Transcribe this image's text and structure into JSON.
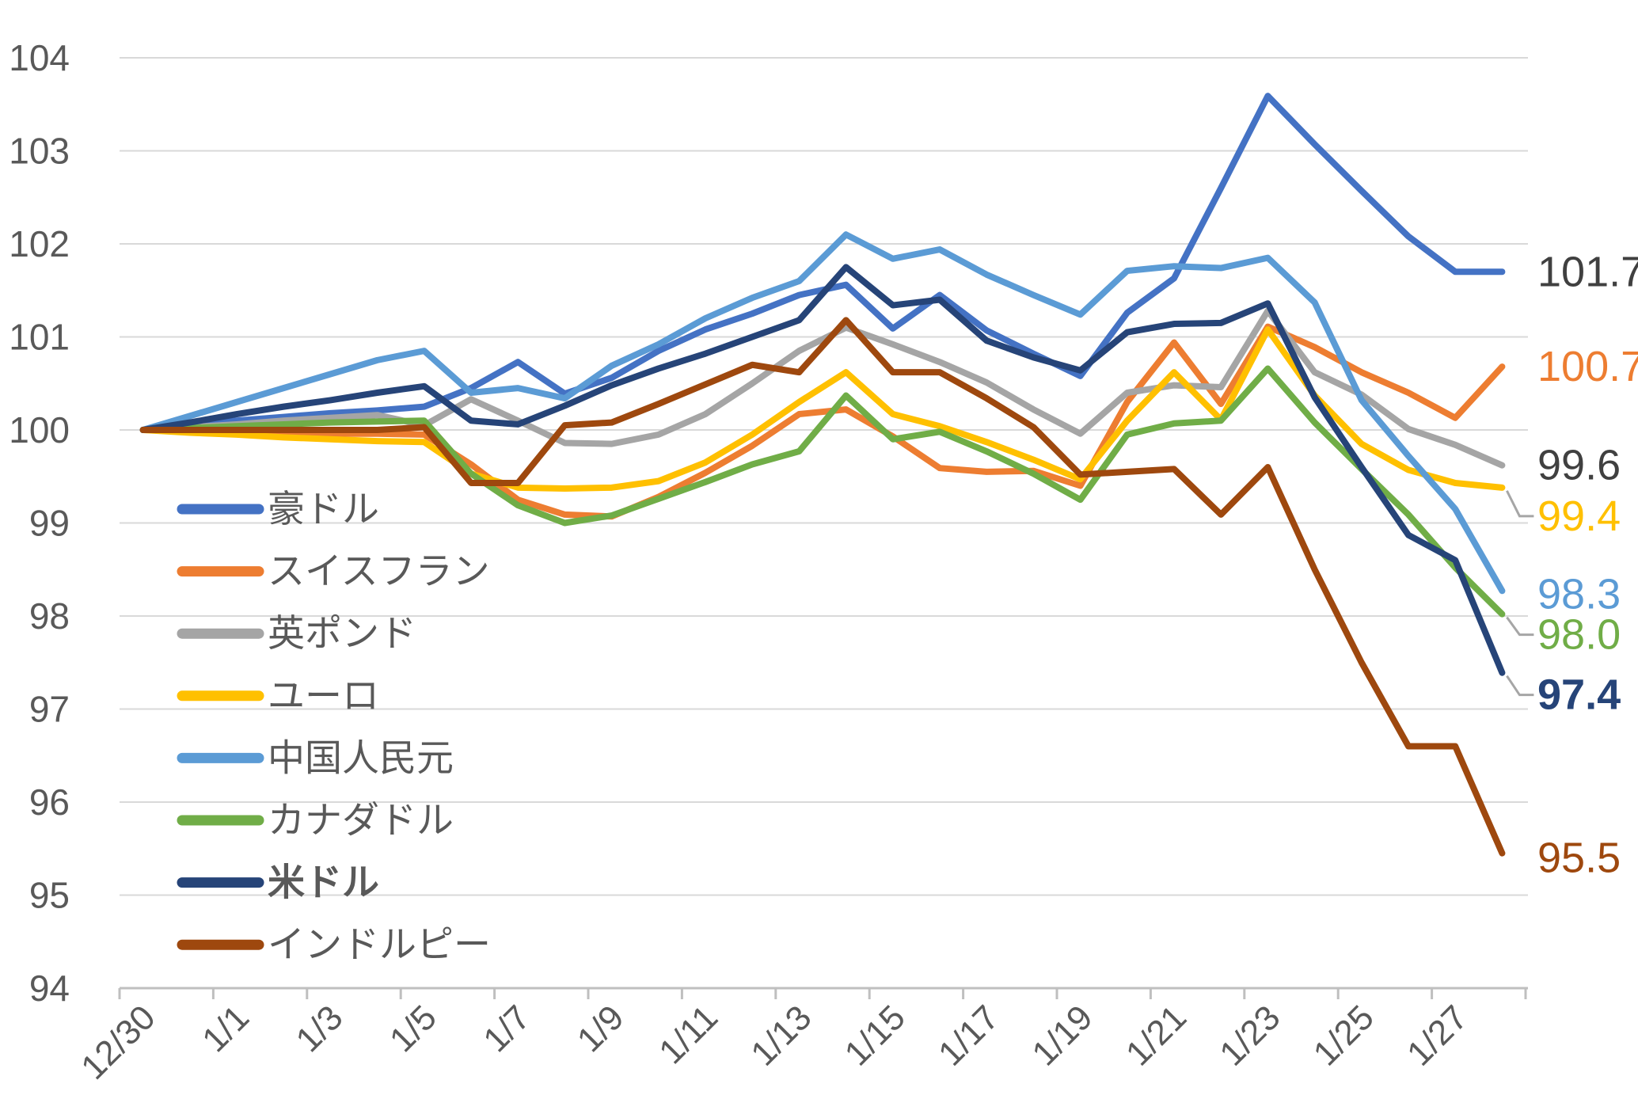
{
  "chart_data": {
    "type": "line",
    "title": "",
    "xlabel": "",
    "ylabel": "",
    "ylim": [
      94,
      104
    ],
    "y_ticks": [
      94,
      95,
      96,
      97,
      98,
      99,
      100,
      101,
      102,
      103,
      104
    ],
    "grid": "horizontal",
    "legend_position": "left-middle",
    "x_tick_labels": [
      "12/30",
      "1/1",
      "1/3",
      "1/5",
      "1/7",
      "1/9",
      "1/11",
      "1/13",
      "1/15",
      "1/17",
      "1/19",
      "1/21",
      "1/23",
      "1/25",
      "1/27"
    ],
    "categories": [
      "12/30",
      "12/31",
      "1/1",
      "1/2",
      "1/3",
      "1/4",
      "1/5",
      "1/6",
      "1/7",
      "1/8",
      "1/9",
      "1/10",
      "1/11",
      "1/12",
      "1/13",
      "1/14",
      "1/15",
      "1/16",
      "1/17",
      "1/18",
      "1/19",
      "1/20",
      "1/21",
      "1/22",
      "1/23",
      "1/24",
      "1/25",
      "1/26",
      "1/27",
      "1/28"
    ],
    "series": [
      {
        "key": "aud",
        "name": "豪ドル",
        "color": "#4472C4",
        "bold": false,
        "end_label": "101.7",
        "end_label_color": "#404040",
        "values": [
          100,
          100.05,
          100.1,
          100.14,
          100.18,
          100.21,
          100.25,
          100.45,
          100.73,
          100.39,
          100.56,
          100.85,
          101.08,
          101.25,
          101.45,
          101.56,
          101.09,
          101.45,
          101.07,
          100.82,
          100.58,
          101.26,
          101.63,
          102.6,
          103.59,
          103.07,
          102.57,
          102.08,
          101.7,
          101.7
        ]
      },
      {
        "key": "chf",
        "name": "スイスフラン",
        "color": "#ED7D31",
        "bold": false,
        "end_label": "100.7",
        "end_label_color": "#ED7D31",
        "values": [
          100,
          99.99,
          99.98,
          99.97,
          99.96,
          99.96,
          99.95,
          99.63,
          99.25,
          99.09,
          99.07,
          99.28,
          99.54,
          99.83,
          100.17,
          100.22,
          99.93,
          99.59,
          99.55,
          99.56,
          99.4,
          100.3,
          100.94,
          100.28,
          101.11,
          100.89,
          100.62,
          100.4,
          100.13,
          100.68
        ]
      },
      {
        "key": "gbp",
        "name": "英ポンド",
        "color": "#A5A5A5",
        "bold": false,
        "end_label": "99.6",
        "end_label_color": "#404040",
        "values": [
          100,
          100.03,
          100.06,
          100.1,
          100.13,
          100.16,
          100.05,
          100.33,
          100.1,
          99.86,
          99.85,
          99.95,
          100.17,
          100.5,
          100.85,
          101.1,
          100.92,
          100.73,
          100.51,
          100.22,
          99.96,
          100.4,
          100.48,
          100.46,
          101.28,
          100.62,
          100.38,
          100.01,
          99.84,
          99.62
        ]
      },
      {
        "key": "eur",
        "name": "ユーロ",
        "color": "#FFC000",
        "bold": false,
        "end_label": "99.4",
        "end_label_color": "#FFC000",
        "values": [
          100,
          99.97,
          99.95,
          99.92,
          99.9,
          99.88,
          99.87,
          99.53,
          99.38,
          99.37,
          99.38,
          99.45,
          99.65,
          99.95,
          100.3,
          100.62,
          100.17,
          100.04,
          99.87,
          99.68,
          99.47,
          100.1,
          100.62,
          100.11,
          101.08,
          100.37,
          99.85,
          99.57,
          99.43,
          99.38
        ]
      },
      {
        "key": "cny",
        "name": "中国人民元",
        "color": "#5B9BD5",
        "bold": false,
        "end_label": "98.3",
        "end_label_color": "#5B9BD5",
        "values": [
          100,
          100.15,
          100.3,
          100.45,
          100.6,
          100.75,
          100.85,
          100.4,
          100.45,
          100.34,
          100.69,
          100.92,
          101.2,
          101.42,
          101.6,
          102.1,
          101.84,
          101.94,
          101.67,
          101.45,
          101.24,
          101.71,
          101.76,
          101.74,
          101.85,
          101.37,
          100.32,
          99.72,
          99.15,
          98.27
        ]
      },
      {
        "key": "cad",
        "name": "カナダドル",
        "color": "#70AD47",
        "bold": false,
        "end_label": "98.0",
        "end_label_color": "#70AD47",
        "values": [
          100,
          100.02,
          100.04,
          100.06,
          100.08,
          100.09,
          100.1,
          99.53,
          99.19,
          99,
          99.08,
          99.26,
          99.44,
          99.63,
          99.77,
          100.37,
          99.9,
          99.98,
          99.77,
          99.53,
          99.25,
          99.95,
          100.07,
          100.1,
          100.66,
          100.08,
          99.58,
          99.09,
          98.52,
          98.02
        ]
      },
      {
        "key": "usd",
        "name": "米ドル",
        "color": "#264478",
        "bold": true,
        "end_label": "97.4",
        "end_label_color": "#264478",
        "values": [
          100,
          100.08,
          100.17,
          100.25,
          100.32,
          100.4,
          100.47,
          100.1,
          100.06,
          100.26,
          100.48,
          100.66,
          100.82,
          101,
          101.18,
          101.75,
          101.34,
          101.4,
          100.96,
          100.78,
          100.64,
          101.05,
          101.14,
          101.15,
          101.36,
          100.35,
          99.6,
          98.87,
          98.6,
          97.39
        ]
      },
      {
        "key": "inr",
        "name": "インドルピー",
        "color": "#9E480E",
        "bold": false,
        "end_label": "95.5",
        "end_label_color": "#9E480E",
        "values": [
          100,
          100,
          100,
          100,
          100,
          100,
          100.03,
          99.43,
          99.43,
          100.05,
          100.08,
          100.28,
          100.49,
          100.7,
          100.62,
          101.18,
          100.62,
          100.62,
          100.34,
          100.03,
          99.52,
          99.55,
          99.58,
          99.09,
          99.6,
          98.5,
          97.5,
          96.6,
          96.6,
          95.45
        ]
      }
    ],
    "style": {
      "grid_color": "#D9D9D9",
      "axis_line_color": "#BFBFBF",
      "tick_color": "#BFBFBF",
      "axis_text_color": "#595959",
      "leader_line_color": "#A6A6A6",
      "background": "#FFFFFF"
    }
  }
}
